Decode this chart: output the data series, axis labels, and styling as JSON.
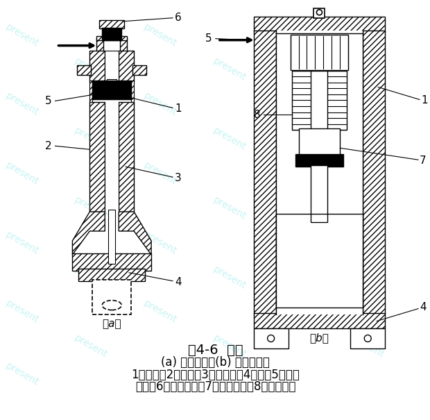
{
  "title": "图4-6  汽锤",
  "subtitle": "(a) 单动汽锤；(b) 双动汽锤；",
  "legend_line1": "1－汽缸；2－活塞；3－活塞杆；4－桩；5－活塞",
  "legend_line2": "上部；6－换向阀门；7－锤的垫座；8－汽缸部分",
  "label_a": "（a）",
  "label_b": "（b）",
  "bg_color": "#ffffff",
  "watermark_color": "#00c8c8",
  "watermark_text": "present",
  "watermark_alpha": 0.22,
  "title_fontsize": 14,
  "body_fontsize": 12
}
